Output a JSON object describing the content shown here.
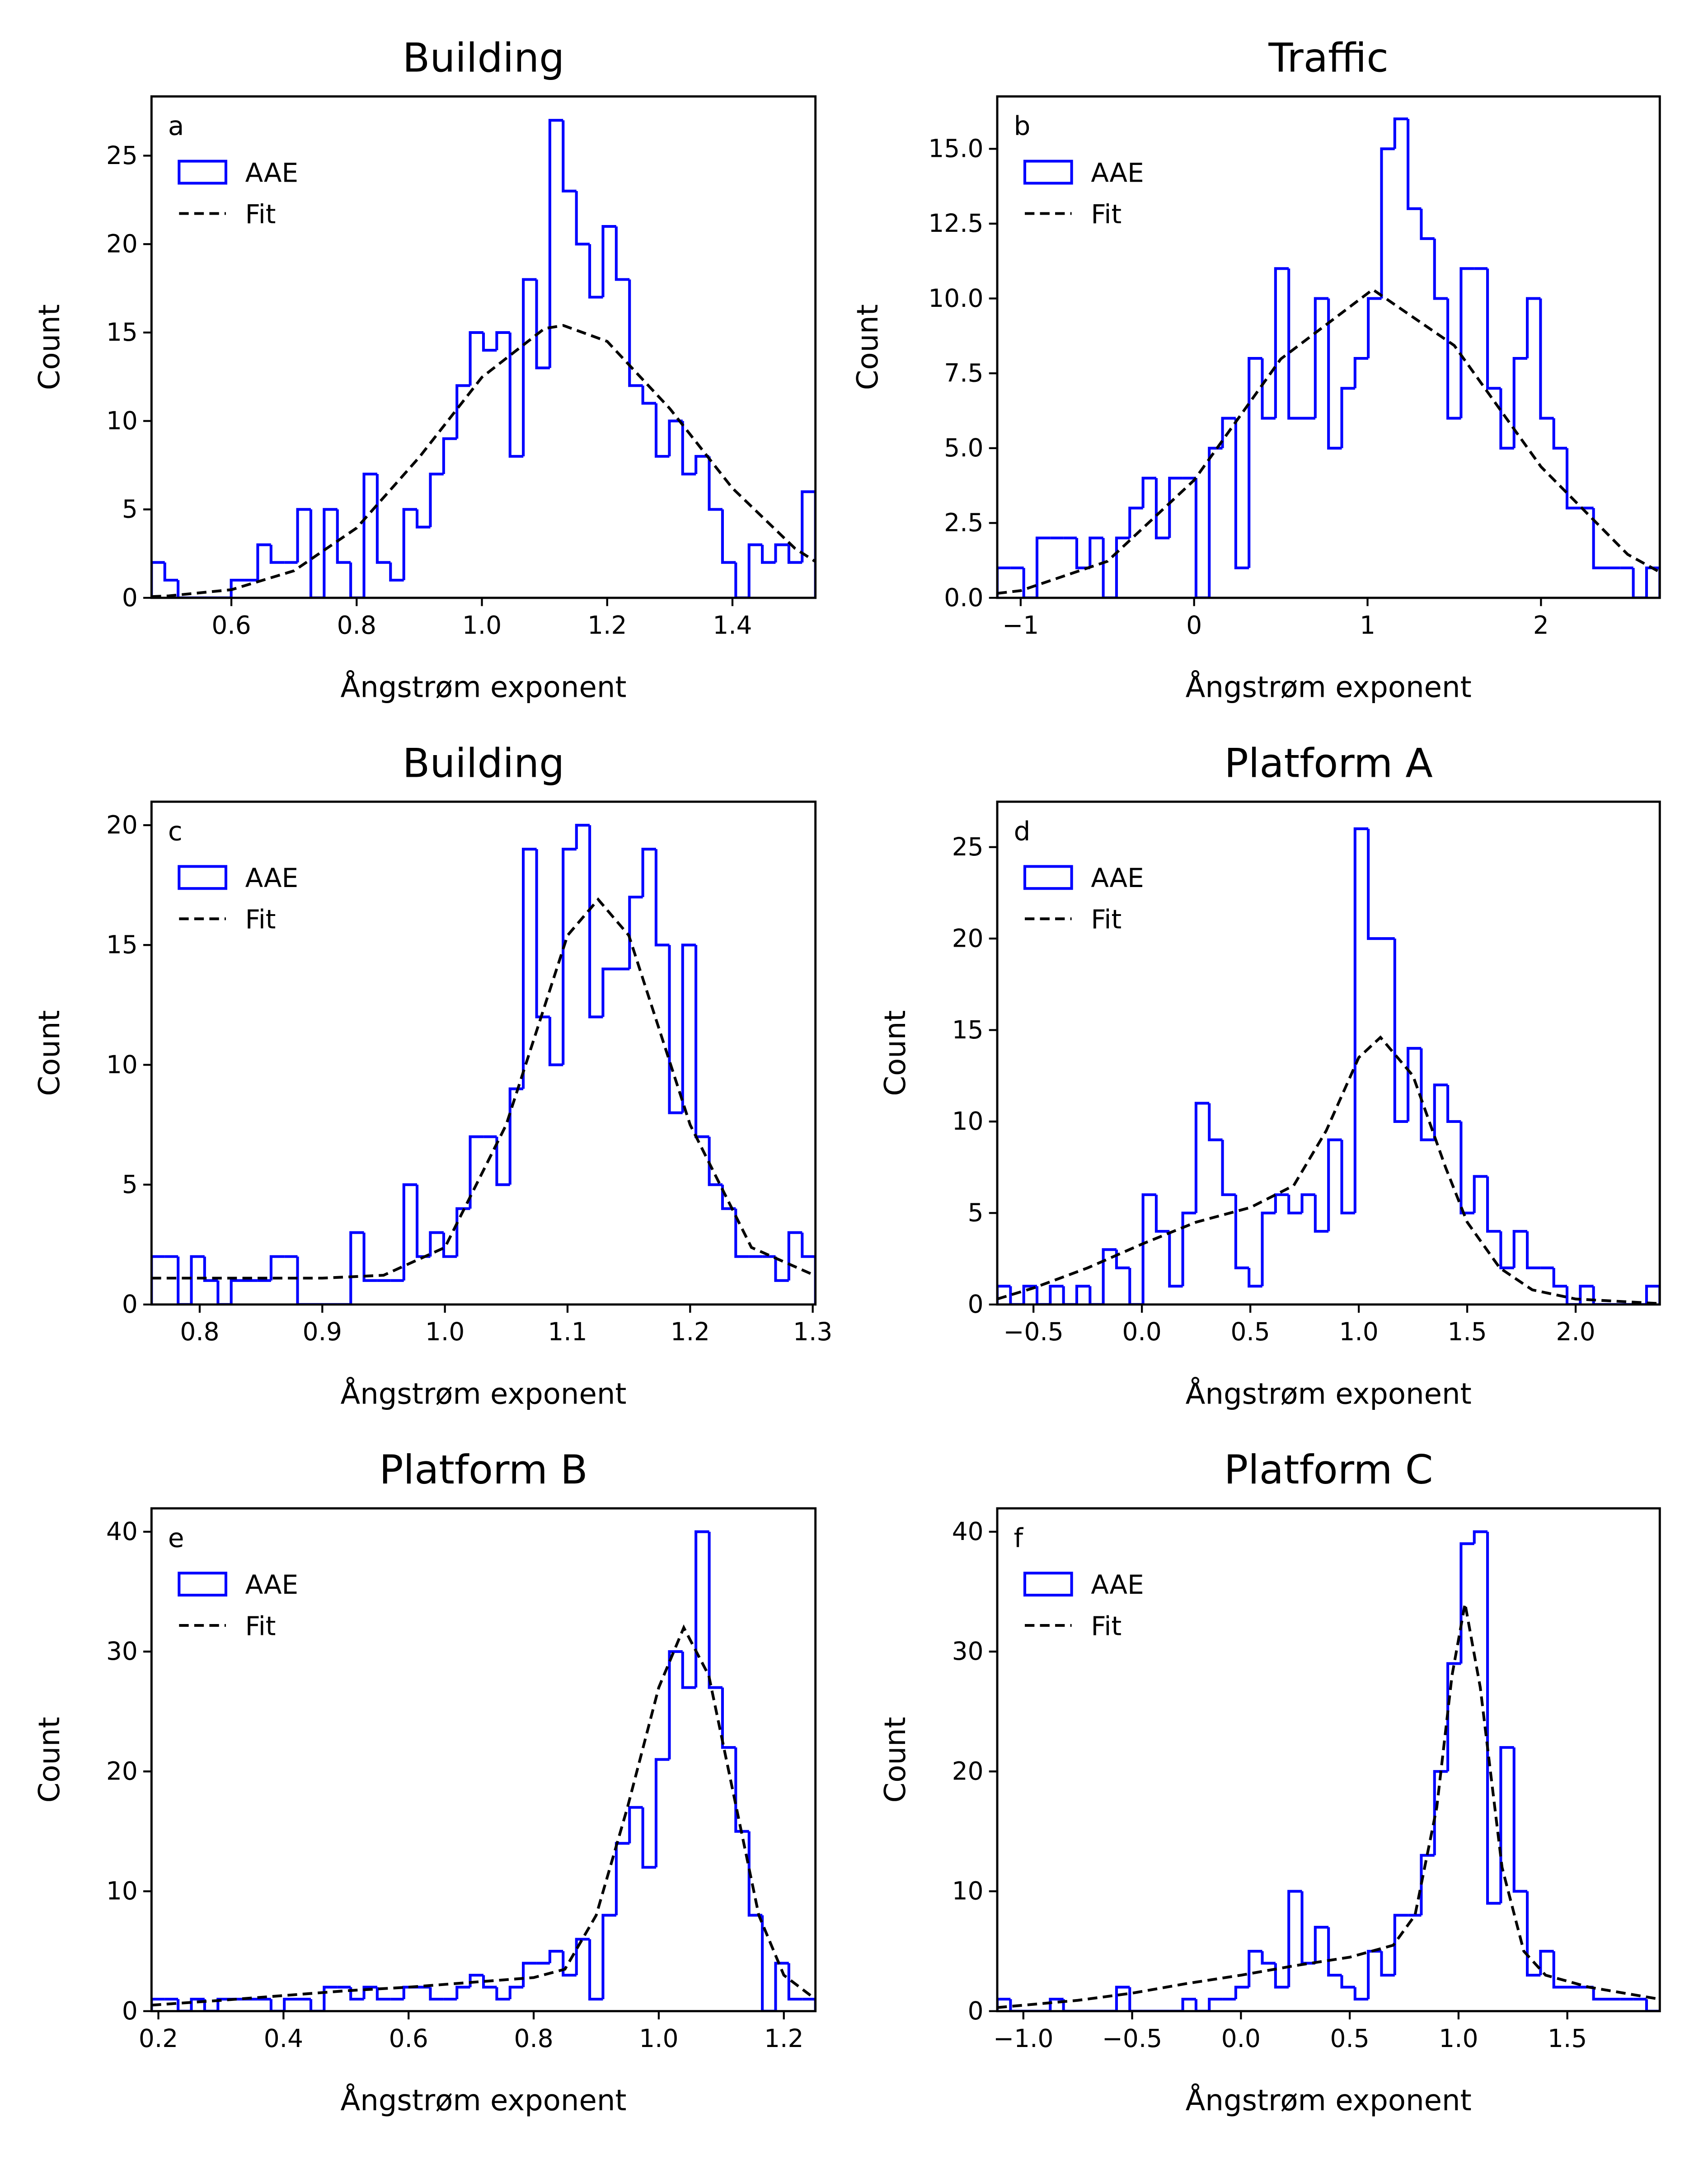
{
  "chart_data": [
    {
      "type": "histogram",
      "title": "Building",
      "label": "a",
      "x_label": "Ångstrøm exponent",
      "y_label": "Count",
      "legend": "upper left",
      "xlim": [
        0.4725,
        1.5325
      ],
      "ylim": [
        0,
        28.35
      ],
      "xticks": [
        0.6,
        0.8,
        {
          "value": 1,
          "label": "1.0"
        },
        1.2,
        1.4
      ],
      "yticks": [
        0,
        5,
        10,
        15,
        20,
        25
      ],
      "series": [
        {
          "name": "AAE",
          "type": "histogram",
          "color": "#0000ff",
          "bins": [
            0.4725,
            0.4937,
            0.5149,
            0.5361,
            0.5573,
            0.5785,
            0.5997,
            0.6209,
            0.6421,
            0.6633,
            0.6845,
            0.7057,
            0.7269,
            0.7481,
            0.7693,
            0.7905,
            0.8117,
            0.8329,
            0.8541,
            0.8753,
            0.8965,
            0.9177,
            0.9389,
            0.9601,
            0.9813,
            1.0025,
            1.0237,
            1.0449,
            1.0661,
            1.0873,
            1.1085,
            1.1297,
            1.1509,
            1.1721,
            1.1933,
            1.2145,
            1.2357,
            1.2569,
            1.2781,
            1.2993,
            1.3205,
            1.3417,
            1.3629,
            1.3841,
            1.4053,
            1.4265,
            1.4477,
            1.4689,
            1.4901,
            1.5113,
            1.5325
          ],
          "values": [
            2,
            1,
            0,
            0,
            0,
            0,
            1,
            1,
            3,
            2,
            2,
            5,
            0,
            5,
            2,
            0,
            7,
            2,
            1,
            5,
            4,
            7,
            9,
            12,
            15,
            14,
            15,
            8,
            18,
            13,
            27,
            23,
            20,
            17,
            21,
            18,
            12,
            11,
            8,
            10,
            7,
            8,
            5,
            2,
            0,
            3,
            2,
            3,
            2,
            6
          ]
        },
        {
          "name": "Fit",
          "type": "line",
          "color": "#000000",
          "x": [
            0.4725,
            0.5,
            0.6,
            0.7,
            0.8,
            0.9,
            1.0,
            1.1,
            1.13,
            1.2,
            1.3,
            1.4,
            1.5,
            1.5325
          ],
          "values": [
            0.07,
            0.11,
            0.46,
            1.53,
            3.95,
            7.95,
            12.47,
            15.23,
            15.4,
            14.5,
            10.7,
            6.2,
            2.79,
            2.05
          ]
        }
      ]
    },
    {
      "type": "histogram",
      "title": "Traffic",
      "label": "b",
      "x_label": "Ångstrøm exponent",
      "y_label": "Count",
      "legend": "upper left",
      "xlim": [
        -1.135,
        2.685
      ],
      "ylim": [
        0,
        16.75
      ],
      "xticks": [
        {
          "value": -1,
          "label": "−1"
        },
        0,
        1,
        2
      ],
      "yticks": [
        {
          "value": 0,
          "label": "0.0"
        },
        2.5,
        {
          "value": 5,
          "label": "5.0"
        },
        7.5,
        {
          "value": 10,
          "label": "10.0"
        },
        12.5,
        {
          "value": 15,
          "label": "15.0"
        }
      ],
      "series": [
        {
          "name": "AAE",
          "type": "histogram",
          "color": "#0000ff",
          "bins": [
            -1.135,
            -1.0586,
            -0.9822,
            -0.9058,
            -0.8294,
            -0.753,
            -0.6766,
            -0.6002,
            -0.5238,
            -0.4474,
            -0.371,
            -0.2946,
            -0.2182,
            -0.1418,
            -0.0654,
            0.011,
            0.0874,
            0.1638,
            0.2402,
            0.3166,
            0.393,
            0.4694,
            0.5458,
            0.6222,
            0.6986,
            0.775,
            0.8514,
            0.9278,
            1.0042,
            1.0806,
            1.157,
            1.2334,
            1.3098,
            1.3862,
            1.4626,
            1.539,
            1.6154,
            1.6918,
            1.7682,
            1.8446,
            1.921,
            1.9974,
            2.0738,
            2.1502,
            2.2266,
            2.303,
            2.3794,
            2.4558,
            2.5322,
            2.6086,
            2.685
          ],
          "values": [
            1,
            1,
            0,
            2,
            2,
            2,
            1,
            2,
            0,
            2,
            3,
            4,
            2,
            4,
            4,
            0,
            5,
            6,
            1,
            8,
            6,
            11,
            6,
            6,
            10,
            5,
            7,
            8,
            10,
            15,
            16,
            13,
            12,
            10,
            6,
            11,
            11,
            7,
            5,
            8,
            10,
            6,
            5,
            3,
            3,
            1,
            1,
            1,
            0,
            1
          ]
        },
        {
          "name": "Fit",
          "type": "line",
          "color": "#000000",
          "x": [
            -1.135,
            -1.0,
            -0.5,
            0,
            0.5,
            1.03,
            1.5,
            2.0,
            2.5,
            2.685
          ],
          "values": [
            0.15,
            0.24,
            1.22,
            3.93,
            7.98,
            10.3,
            8.43,
            4.38,
            1.45,
            0.86
          ]
        }
      ]
    },
    {
      "type": "histogram",
      "title": "Building",
      "label": "c",
      "x_label": "Ångstrøm exponent",
      "y_label": "Count",
      "legend": "upper left",
      "xlim": [
        0.7607,
        1.3022
      ],
      "ylim": [
        0,
        20.98
      ],
      "xticks": [
        0.8,
        0.9,
        {
          "value": 1,
          "label": "1.0"
        },
        1.1,
        1.2,
        1.3
      ],
      "yticks": [
        0,
        5,
        10,
        15,
        20
      ],
      "series": [
        {
          "name": "AAE",
          "type": "histogram",
          "color": "#0000ff",
          "bins": [
            0.7607,
            0.7715,
            0.7824,
            0.7932,
            0.804,
            0.8149,
            0.8257,
            0.8365,
            0.8473,
            0.8582,
            0.869,
            0.8798,
            0.8907,
            0.9015,
            0.9123,
            0.9232,
            0.934,
            0.9448,
            0.9556,
            0.9665,
            0.9773,
            0.9881,
            0.999,
            1.0098,
            1.0206,
            1.0315,
            1.0423,
            1.0531,
            1.0639,
            1.0748,
            1.0856,
            1.0964,
            1.1073,
            1.1181,
            1.1289,
            1.1398,
            1.1506,
            1.1614,
            1.1722,
            1.1831,
            1.1939,
            1.2047,
            1.2156,
            1.2264,
            1.2372,
            1.2481,
            1.2589,
            1.2697,
            1.2805,
            1.2914,
            1.3022
          ],
          "values": [
            2,
            2,
            0,
            2,
            1,
            0,
            1,
            1,
            1,
            2,
            2,
            0,
            0,
            0,
            0,
            3,
            1,
            1,
            1,
            5,
            2,
            3,
            2,
            4,
            7,
            7,
            5,
            9,
            19,
            12,
            10,
            19,
            20,
            12,
            14,
            14,
            17,
            19,
            15,
            8,
            15,
            7,
            5,
            4,
            2,
            2,
            2,
            1,
            3,
            2
          ]
        },
        {
          "name": "Fit",
          "type": "line",
          "color": "#000000",
          "x": [
            0.7607,
            0.9,
            0.95,
            1.0,
            1.05,
            1.1,
            1.125,
            1.15,
            1.2,
            1.25,
            1.3022
          ],
          "values": [
            1.1,
            1.1,
            1.22,
            2.38,
            7.5,
            15.4,
            16.9,
            15.4,
            7.5,
            2.38,
            1.2
          ]
        }
      ]
    },
    {
      "type": "histogram",
      "title": "Platform A",
      "label": "d",
      "x_label": "Ångstrøm exponent",
      "y_label": "Count",
      "legend": "upper left",
      "xlim": [
        -0.667,
        2.388
      ],
      "ylim": [
        0,
        27.48
      ],
      "xticks": [
        {
          "value": -0.5,
          "label": "−0.5"
        },
        {
          "value": 0,
          "label": "0.0"
        },
        0.5,
        {
          "value": 1,
          "label": "1.0"
        },
        1.5,
        {
          "value": 2,
          "label": "2.0"
        }
      ],
      "yticks": [
        0,
        5,
        10,
        15,
        20,
        25
      ],
      "series": [
        {
          "name": "AAE",
          "type": "histogram",
          "color": "#0000ff",
          "bins": [
            -0.667,
            -0.6059,
            -0.5448,
            -0.4837,
            -0.4226,
            -0.3615,
            -0.3004,
            -0.2393,
            -0.1782,
            -0.1171,
            -0.056,
            0.0051,
            0.0662,
            0.1273,
            0.1884,
            0.2495,
            0.3106,
            0.3717,
            0.4328,
            0.4939,
            0.555,
            0.6161,
            0.6772,
            0.7383,
            0.7994,
            0.8605,
            0.9216,
            0.9827,
            1.0438,
            1.1049,
            1.166,
            1.2271,
            1.2882,
            1.3493,
            1.4104,
            1.4715,
            1.5326,
            1.5937,
            1.6548,
            1.7159,
            1.777,
            1.8381,
            1.8992,
            1.9603,
            2.0214,
            2.0825,
            2.1436,
            2.2047,
            2.2658,
            2.3269,
            2.388
          ],
          "values": [
            1,
            0,
            1,
            0,
            1,
            0,
            1,
            0,
            3,
            2,
            0,
            6,
            4,
            1,
            5,
            11,
            9,
            6,
            2,
            1,
            5,
            6,
            5,
            6,
            4,
            9,
            5,
            26,
            20,
            20,
            10,
            14,
            9,
            12,
            10,
            5,
            7,
            4,
            2,
            4,
            2,
            2,
            1,
            0,
            1,
            0,
            0,
            0,
            0,
            1
          ]
        },
        {
          "name": "Fit",
          "type": "line",
          "color": "#000000",
          "x": [
            -0.667,
            -0.5,
            -0.25,
            0,
            0.25,
            0.5,
            0.7,
            0.85,
            1.0,
            1.1,
            1.25,
            1.4,
            1.5,
            1.65,
            1.8,
            2.0,
            2.388
          ],
          "values": [
            0.3,
            0.9,
            2,
            3.3,
            4.5,
            5.3,
            6.5,
            9.5,
            13.5,
            14.6,
            12.5,
            7.5,
            4.5,
            2,
            0.8,
            0.3,
            0.05
          ]
        }
      ]
    },
    {
      "type": "histogram",
      "title": "Platform B",
      "label": "e",
      "x_label": "Ångstrøm exponent",
      "y_label": "Count",
      "legend": "upper left",
      "xlim": [
        0.189,
        1.2505
      ],
      "ylim": [
        0,
        41.95
      ],
      "xticks": [
        0.2,
        0.4,
        0.6,
        0.8,
        {
          "value": 1,
          "label": "1.0"
        },
        1.2
      ],
      "yticks": [
        0,
        10,
        20,
        30,
        40
      ],
      "series": [
        {
          "name": "AAE",
          "type": "histogram",
          "color": "#0000ff",
          "bins": [
            0.189,
            0.2102,
            0.2315,
            0.2527,
            0.2739,
            0.2952,
            0.3164,
            0.3376,
            0.3588,
            0.3801,
            0.4013,
            0.4225,
            0.4438,
            0.465,
            0.4862,
            0.5075,
            0.5287,
            0.5499,
            0.5711,
            0.5924,
            0.6136,
            0.6348,
            0.6561,
            0.6773,
            0.6985,
            0.7198,
            0.741,
            0.7622,
            0.7834,
            0.8047,
            0.8259,
            0.8471,
            0.8684,
            0.8896,
            0.9108,
            0.9321,
            0.9533,
            0.9745,
            0.9957,
            1.017,
            1.0382,
            1.0594,
            1.0807,
            1.1019,
            1.1231,
            1.1444,
            1.1656,
            1.1868,
            1.208,
            1.2293,
            1.2505
          ],
          "values": [
            1,
            1,
            0,
            1,
            0,
            1,
            1,
            1,
            1,
            0,
            1,
            1,
            0,
            2,
            2,
            1,
            2,
            1,
            1,
            2,
            2,
            1,
            1,
            2,
            3,
            2,
            1,
            2,
            4,
            4,
            5,
            3,
            6,
            1,
            8,
            14,
            17,
            12,
            21,
            30,
            27,
            40,
            27,
            22,
            15,
            8,
            0,
            4,
            1,
            1
          ]
        },
        {
          "name": "Fit",
          "type": "line",
          "color": "#000000",
          "x": [
            0.189,
            0.3,
            0.4,
            0.5,
            0.6,
            0.7,
            0.8,
            0.85,
            0.9,
            0.95,
            1.0,
            1.04,
            1.08,
            1.12,
            1.16,
            1.2,
            1.2505
          ],
          "values": [
            0.5,
            0.9,
            1.3,
            1.7,
            2.0,
            2.4,
            2.8,
            3.5,
            8,
            17,
            27,
            32,
            28,
            18,
            8,
            3,
            1
          ]
        }
      ]
    },
    {
      "type": "histogram",
      "title": "Platform C",
      "label": "f",
      "x_label": "Ångstrøm exponent",
      "y_label": "Count",
      "legend": "upper left",
      "xlim": [
        -1.12,
        1.925
      ],
      "ylim": [
        0,
        41.95
      ],
      "xticks": [
        {
          "value": -1,
          "label": "−1.0"
        },
        {
          "value": -0.5,
          "label": "−0.5"
        },
        {
          "value": 0,
          "label": "0.0"
        },
        0.5,
        {
          "value": 1,
          "label": "1.0"
        },
        1.5
      ],
      "yticks": [
        0,
        10,
        20,
        30,
        40
      ],
      "series": [
        {
          "name": "AAE",
          "type": "histogram",
          "color": "#0000ff",
          "bins": [
            -1.12,
            -1.0591,
            -0.9982,
            -0.9373,
            -0.8764,
            -0.8155,
            -0.7546,
            -0.6937,
            -0.6328,
            -0.5719,
            -0.511,
            -0.4501,
            -0.3892,
            -0.3283,
            -0.2674,
            -0.2065,
            -0.1456,
            -0.0847,
            -0.0238,
            0.0371,
            0.098,
            0.1589,
            0.2198,
            0.2807,
            0.3416,
            0.4025,
            0.4634,
            0.5243,
            0.5852,
            0.6461,
            0.707,
            0.7679,
            0.8288,
            0.8897,
            0.9506,
            1.0115,
            1.0724,
            1.1333,
            1.1942,
            1.2551,
            1.316,
            1.3769,
            1.4378,
            1.4987,
            1.5596,
            1.6205,
            1.6814,
            1.7423,
            1.8032,
            1.8641,
            1.925
          ],
          "values": [
            1,
            0,
            0,
            0,
            1,
            0,
            0,
            0,
            0,
            2,
            0,
            0,
            0,
            0,
            1,
            0,
            1,
            1,
            2,
            5,
            4,
            2,
            10,
            4,
            7,
            3,
            2,
            1,
            5,
            3,
            8,
            8,
            13,
            20,
            29,
            39,
            40,
            9,
            22,
            10,
            3,
            5,
            2,
            2,
            2,
            1,
            1,
            1,
            1,
            0
          ]
        },
        {
          "name": "Fit",
          "type": "line",
          "color": "#000000",
          "x": [
            -1.12,
            -0.75,
            -0.5,
            -0.25,
            0,
            0.25,
            0.5,
            0.7,
            0.8,
            0.9,
            0.97,
            1.03,
            1.1,
            1.2,
            1.3,
            1.4,
            1.6,
            1.924
          ],
          "values": [
            0.3,
            0.9,
            1.5,
            2.3,
            3,
            3.8,
            4.5,
            5.5,
            8,
            17,
            28,
            34,
            27,
            12,
            5,
            3,
            2,
            1
          ]
        }
      ]
    }
  ]
}
